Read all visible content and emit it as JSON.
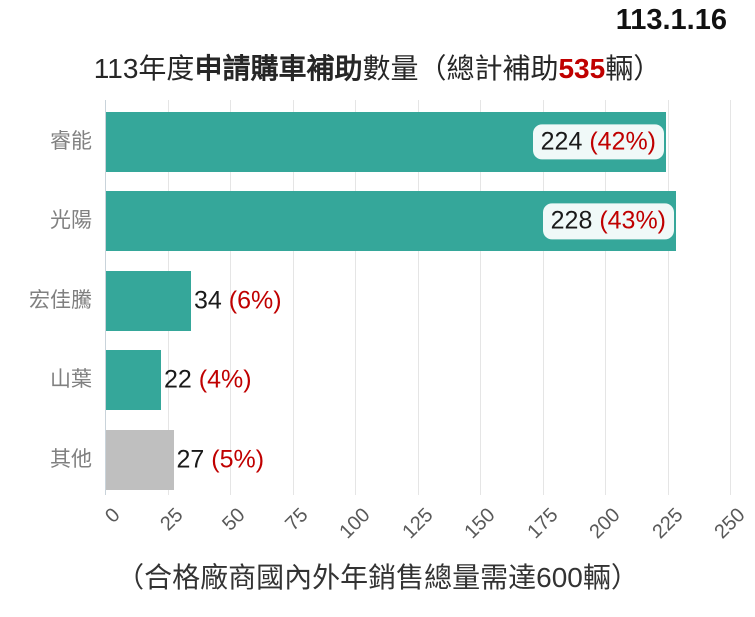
{
  "date": "113.1.16",
  "title": {
    "part1": "113年度",
    "part2_bold": "申請購車補助",
    "part3": "數量（總計補助",
    "total_bold_red": "535",
    "part4": "輛）"
  },
  "footnote": "（合格廠商國內外年銷售總量需達600輛）",
  "colors": {
    "bar_teal": "#35A79A",
    "bar_gray": "#BFBFBF",
    "accent_red": "#C00000",
    "category_label": "#808080",
    "tick_label": "#595959",
    "gridline": "#e5e5e5",
    "axis_line": "#c9d3da"
  },
  "chart_data": {
    "type": "bar",
    "orientation": "horizontal",
    "title": "113年度申請購車補助數量（總計補助535輛）",
    "categories": [
      "睿能",
      "光陽",
      "宏佳騰",
      "山葉",
      "其他"
    ],
    "values": [
      224,
      228,
      34,
      22,
      27
    ],
    "percent_labels": [
      "(42%)",
      "(43%)",
      "(6%)",
      "(4%)",
      "(5%)"
    ],
    "bar_colors": [
      "#35A79A",
      "#35A79A",
      "#35A79A",
      "#35A79A",
      "#BFBFBF"
    ],
    "xlim": [
      0,
      250
    ],
    "xticks": [
      0,
      25,
      50,
      75,
      100,
      125,
      150,
      175,
      200,
      225,
      250
    ],
    "grid": true,
    "legend": "none",
    "xlabel": "",
    "ylabel": ""
  }
}
